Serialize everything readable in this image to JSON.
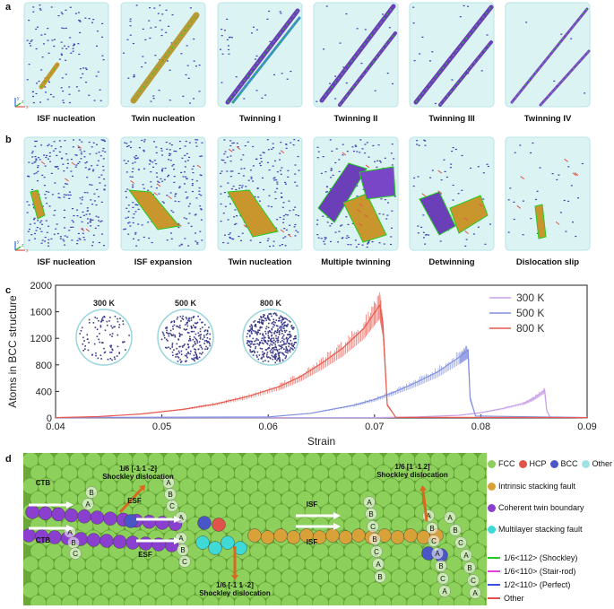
{
  "panel_a": {
    "letter": "a",
    "captions": [
      "ISF nucleation",
      "Twin nucleation",
      "Twinning I",
      "Twinning II",
      "Twinning III",
      "Twinning IV"
    ]
  },
  "panel_b": {
    "letter": "b",
    "captions": [
      "ISF nucleation",
      "ISF expansion",
      "Twin nucleation",
      "Multiple twinning",
      "Detwinning",
      "Dislocation slip"
    ]
  },
  "axes_glyph": {
    "x": "x",
    "y": "y",
    "z": "z"
  },
  "panel_c": {
    "letter": "c",
    "insets": [
      "300 K",
      "500 K",
      "800 K"
    ]
  },
  "chart_data": {
    "type": "line",
    "xlabel": "Strain",
    "ylabel": "Atoms in BCC structure",
    "xlim": [
      0.04,
      0.09
    ],
    "ylim": [
      0,
      2000
    ],
    "xticks": [
      "0.04",
      "0.05",
      "0.06",
      "0.07",
      "0.08",
      "0.09"
    ],
    "yticks": [
      "0",
      "400",
      "800",
      "1200",
      "1600",
      "2000"
    ],
    "legend_position": "top-right",
    "series": [
      {
        "name": "300 K",
        "color": "#c9a0e8",
        "x": [
          0.04,
          0.07,
          0.074,
          0.078,
          0.08,
          0.082,
          0.084,
          0.085,
          0.086,
          0.0862,
          0.0865,
          0.09
        ],
        "y": [
          5,
          5,
          15,
          40,
          80,
          140,
          220,
          300,
          420,
          120,
          15,
          5
        ]
      },
      {
        "name": "500 K",
        "color": "#7f8fe0",
        "x": [
          0.04,
          0.06,
          0.064,
          0.068,
          0.07,
          0.072,
          0.074,
          0.076,
          0.078,
          0.0788,
          0.079,
          0.0795,
          0.09
        ],
        "y": [
          5,
          15,
          70,
          190,
          280,
          400,
          540,
          700,
          920,
          1020,
          300,
          30,
          5
        ]
      },
      {
        "name": "800 K",
        "color": "#e8584e",
        "x": [
          0.04,
          0.044,
          0.048,
          0.052,
          0.055,
          0.058,
          0.061,
          0.063,
          0.065,
          0.067,
          0.069,
          0.0705,
          0.0708,
          0.0712,
          0.072,
          0.09
        ],
        "y": [
          5,
          20,
          60,
          130,
          210,
          320,
          470,
          620,
          820,
          1050,
          1350,
          1700,
          1400,
          200,
          10,
          5
        ]
      }
    ]
  },
  "panel_d": {
    "letter": "d",
    "labels": {
      "shockley_top": "1/6 [-1 1 -2]\nShockley dislocation",
      "shockley_right": "1/6 [1 -1 2]\nShockley dislocation",
      "shockley_bottom": "1/6 [-1 1 -2]\nShockley dislocation",
      "ctb1": "CTB",
      "ctb2": "CTB",
      "esf1": "ESF",
      "esf2": "ESF",
      "isf1": "ISF",
      "isf2": "ISF"
    },
    "legend": {
      "balls": [
        {
          "label": "FCC",
          "color": "#8ccf5a"
        },
        {
          "label": "HCP",
          "color": "#e0534a"
        },
        {
          "label": "BCC",
          "color": "#4a55c8"
        },
        {
          "label": "Other",
          "color": "#9fe2e6"
        }
      ],
      "regions": [
        {
          "label": "Intrinsic stacking fault",
          "color": "#d9a238"
        },
        {
          "label": "Coherent twin boundary",
          "color": "#8a3fcf"
        },
        {
          "label": "Multilayer stacking fault",
          "color": "#3fd9d6"
        }
      ],
      "lines": [
        {
          "label": "1/6<112> (Shockley)",
          "color": "#22cc22"
        },
        {
          "label": "1/6<110> (Stair-rod)",
          "color": "#e040e0"
        },
        {
          "label": "1/2<110> (Perfect)",
          "color": "#3a4fe0"
        },
        {
          "label": "Other",
          "color": "#e0534a"
        }
      ]
    }
  }
}
